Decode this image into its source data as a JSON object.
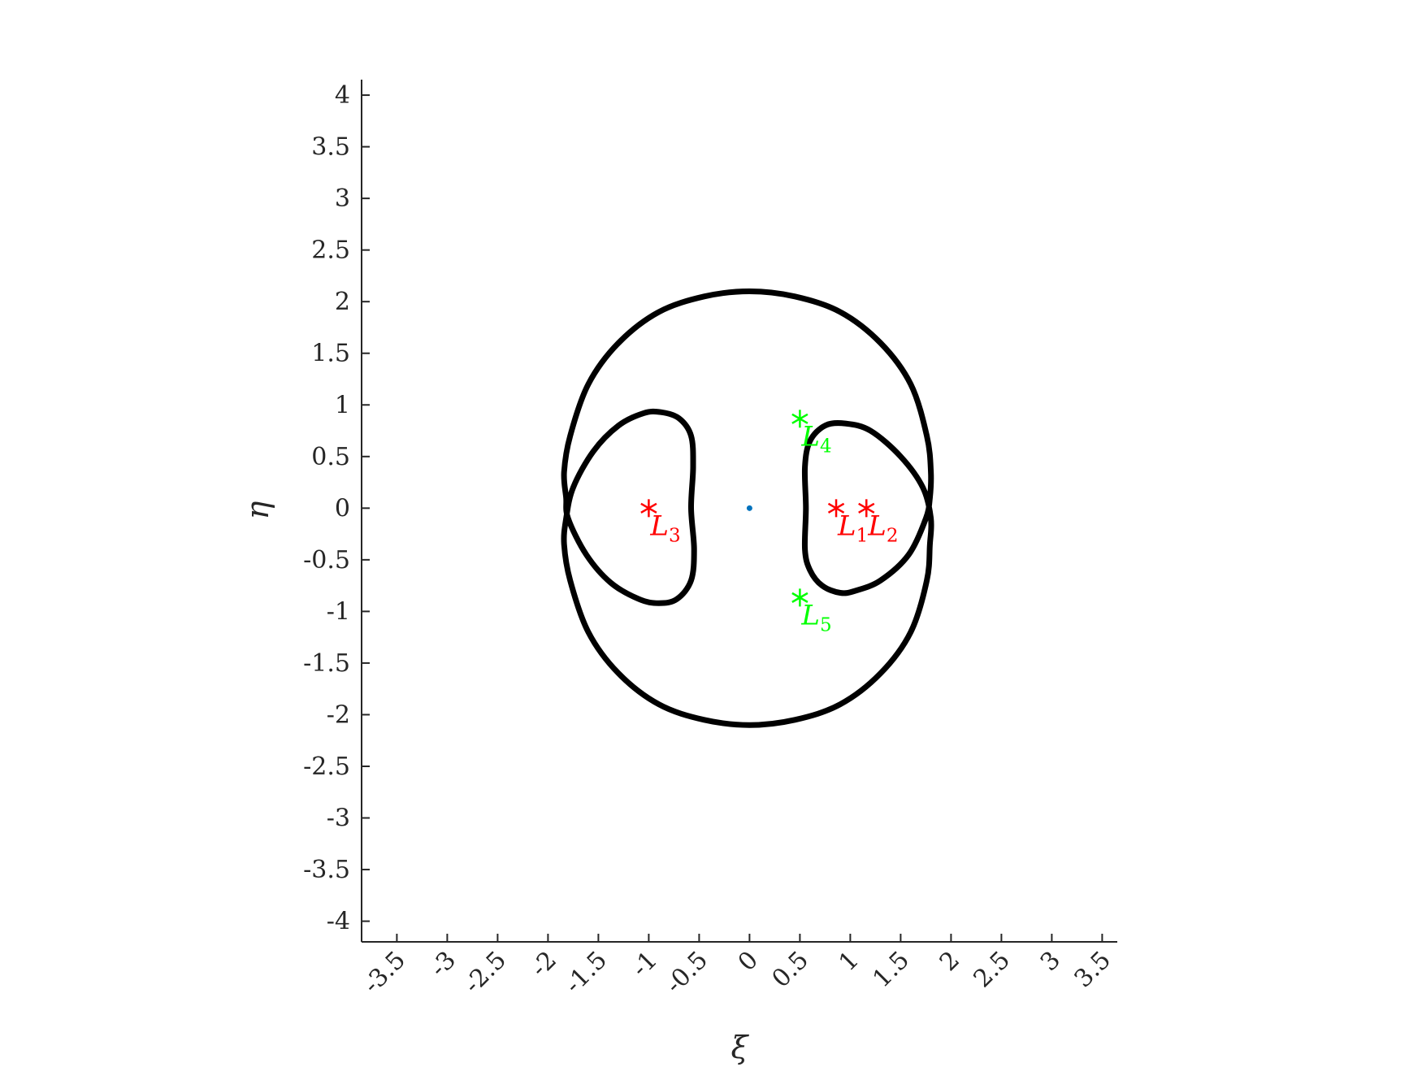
{
  "chart_data": {
    "type": "line",
    "title": "",
    "xlabel": "ξ",
    "ylabel": "η",
    "xlim": [
      -3.85,
      3.65
    ],
    "ylim": [
      -4.2,
      4.15
    ],
    "xticks": [
      -3.5,
      -3,
      -2.5,
      -2,
      -1.5,
      -1,
      -0.5,
      0,
      0.5,
      1,
      1.5,
      2,
      2.5,
      3,
      3.5
    ],
    "xtick_labels": [
      "-3.5",
      "-3",
      "-2.5",
      "-2",
      "-1.5",
      "-1",
      "-0.5",
      "0",
      "0.5",
      "1",
      "1.5",
      "2",
      "2.5",
      "3",
      "3.5"
    ],
    "yticks": [
      -4,
      -3.5,
      -3,
      -2.5,
      -2,
      -1.5,
      -1,
      -0.5,
      0,
      0.5,
      1,
      1.5,
      2,
      2.5,
      3,
      3.5,
      4
    ],
    "ytick_labels": [
      "-4",
      "-3.5",
      "-3",
      "-2.5",
      "-2",
      "-1.5",
      "-1",
      "-0.5",
      "0",
      "0.5",
      "1",
      "1.5",
      "2",
      "2.5",
      "3",
      "3.5",
      "4"
    ],
    "grid": false,
    "legend": "none",
    "curves": [
      {
        "color": "#000000",
        "closed": true,
        "points": [
          [
            0,
            2.1
          ],
          [
            0.45,
            2.05
          ],
          [
            0.9,
            1.9
          ],
          [
            1.3,
            1.6
          ],
          [
            1.6,
            1.2
          ],
          [
            1.76,
            0.7
          ],
          [
            1.8,
            0.35
          ],
          [
            1.79,
            0.1
          ],
          [
            1.75,
            -0.1
          ],
          [
            1.58,
            -0.45
          ],
          [
            1.3,
            -0.7
          ],
          [
            1.05,
            -0.8
          ],
          [
            0.9,
            -0.82
          ],
          [
            0.72,
            -0.75
          ],
          [
            0.6,
            -0.6
          ],
          [
            0.55,
            -0.4
          ],
          [
            0.56,
            0
          ],
          [
            0.55,
            0.4
          ],
          [
            0.6,
            0.65
          ],
          [
            0.75,
            0.8
          ],
          [
            0.95,
            0.82
          ],
          [
            1.2,
            0.75
          ],
          [
            1.5,
            0.5
          ],
          [
            1.72,
            0.2
          ],
          [
            1.8,
            -0.1
          ],
          [
            1.79,
            -0.35
          ],
          [
            1.76,
            -0.7
          ],
          [
            1.6,
            -1.2
          ],
          [
            1.3,
            -1.6
          ],
          [
            0.9,
            -1.9
          ],
          [
            0.45,
            -2.05
          ],
          [
            0,
            -2.1
          ],
          [
            -0.45,
            -2.05
          ],
          [
            -0.9,
            -1.9
          ],
          [
            -1.3,
            -1.6
          ],
          [
            -1.6,
            -1.2
          ],
          [
            -1.78,
            -0.7
          ],
          [
            -1.84,
            -0.35
          ],
          [
            -1.82,
            -0.1
          ],
          [
            -1.75,
            0.2
          ],
          [
            -1.55,
            0.55
          ],
          [
            -1.3,
            0.8
          ],
          [
            -1.05,
            0.92
          ],
          [
            -0.88,
            0.93
          ],
          [
            -0.7,
            0.87
          ],
          [
            -0.58,
            0.7
          ],
          [
            -0.56,
            0.4
          ],
          [
            -0.58,
            0
          ],
          [
            -0.55,
            -0.4
          ],
          [
            -0.58,
            -0.7
          ],
          [
            -0.72,
            -0.88
          ],
          [
            -0.9,
            -0.92
          ],
          [
            -1.1,
            -0.88
          ],
          [
            -1.38,
            -0.72
          ],
          [
            -1.62,
            -0.45
          ],
          [
            -1.8,
            -0.1
          ],
          [
            -1.82,
            0.1
          ],
          [
            -1.84,
            0.35
          ],
          [
            -1.78,
            0.7
          ],
          [
            -1.6,
            1.2
          ],
          [
            -1.3,
            1.6
          ],
          [
            -0.9,
            1.9
          ],
          [
            -0.45,
            2.05
          ]
        ]
      }
    ],
    "center_point": {
      "x": 0,
      "y": 0,
      "color": "#0072BD"
    },
    "points": [
      {
        "x": 0.86,
        "y": 0,
        "label": "L",
        "sub": "1",
        "color": "#ff0000"
      },
      {
        "x": 1.16,
        "y": 0,
        "label": "L",
        "sub": "2",
        "color": "#ff0000"
      },
      {
        "x": -1.0,
        "y": 0,
        "label": "L",
        "sub": "3",
        "color": "#ff0000"
      },
      {
        "x": 0.5,
        "y": 0.866,
        "label": "L",
        "sub": "4",
        "color": "#00ff00"
      },
      {
        "x": 0.5,
        "y": -0.866,
        "label": "L",
        "sub": "5",
        "color": "#00ff00"
      }
    ]
  }
}
